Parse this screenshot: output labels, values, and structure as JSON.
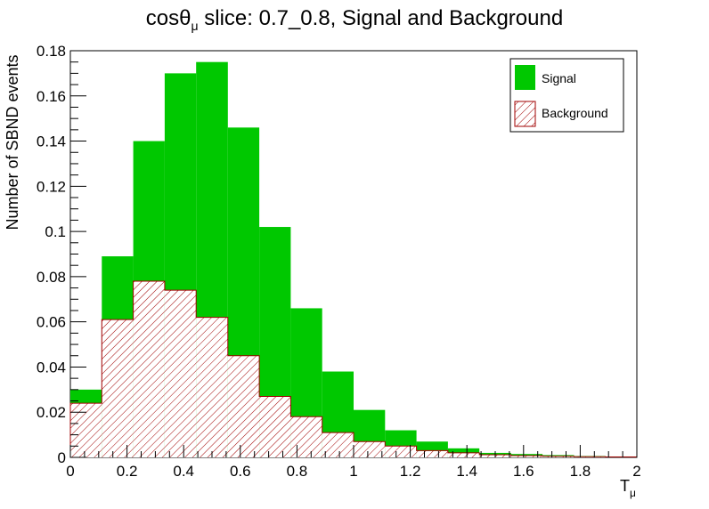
{
  "chart_data": {
    "type": "bar",
    "title": {
      "prefix": "cosθ",
      "subscript": "μ",
      "suffix": " slice: 0.7_0.8, Signal and Background"
    },
    "xlabel": {
      "base": "T",
      "subscript": "μ"
    },
    "ylabel": "Number of SBND events",
    "xlim": [
      0,
      2
    ],
    "ylim": [
      0,
      0.18
    ],
    "xticks": [
      0,
      0.2,
      0.4,
      0.6,
      0.8,
      1,
      1.2,
      1.4,
      1.6,
      1.8,
      2
    ],
    "xtick_labels": [
      "0",
      "0.2",
      "0.4",
      "0.6",
      "0.8",
      "1",
      "1.2",
      "1.4",
      "1.6",
      "1.8",
      "2"
    ],
    "yticks": [
      0,
      0.02,
      0.04,
      0.06,
      0.08,
      0.1,
      0.12,
      0.14,
      0.16,
      0.18
    ],
    "ytick_labels": [
      "0",
      "0.02",
      "0.04",
      "0.06",
      "0.08",
      "0.1",
      "0.12",
      "0.14",
      "0.16",
      "0.18"
    ],
    "bin_edges": [
      0,
      0.111,
      0.222,
      0.333,
      0.444,
      0.556,
      0.667,
      0.778,
      0.889,
      1.0,
      1.111,
      1.222,
      1.333,
      1.444,
      1.556,
      1.667,
      1.778,
      1.889,
      2.0
    ],
    "series": [
      {
        "name": "Signal",
        "color": "#00c800",
        "style": "solid",
        "values": [
          0.03,
          0.089,
          0.14,
          0.17,
          0.175,
          0.146,
          0.102,
          0.066,
          0.038,
          0.021,
          0.012,
          0.007,
          0.004,
          0.002,
          0.0015,
          0.001,
          0.0006,
          0.0004
        ]
      },
      {
        "name": "Background",
        "color": "#a00000",
        "style": "hatched",
        "values": [
          0.024,
          0.061,
          0.078,
          0.074,
          0.062,
          0.045,
          0.027,
          0.018,
          0.011,
          0.007,
          0.005,
          0.003,
          0.002,
          0.0012,
          0.0008,
          0.0005,
          0.0003,
          0.0002
        ]
      }
    ],
    "legend_position": "top-right",
    "grid": false
  }
}
